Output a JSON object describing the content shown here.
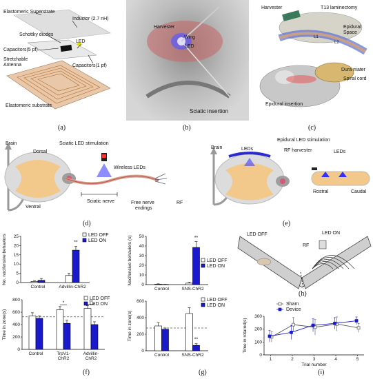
{
  "panel_a": {
    "labels": [
      "Elastomeric Superstrate",
      "Inductor (2.7 nH)",
      "Schottky diodes",
      "Capacitors(5 pf)",
      "LED",
      "Stretchable",
      "Antenna",
      "Capacitors(1 pf)",
      "Elastomeric substrate"
    ],
    "caption": "(a)"
  },
  "panel_b": {
    "labels": [
      "Harvester",
      "Wing",
      "LED",
      "Sciatic insertion"
    ],
    "caption": "(b)"
  },
  "panel_c": {
    "labels": [
      "Harvester",
      "T13 laminectomy",
      "Epidural",
      "Space",
      "Dura mater",
      "Spiral cord",
      "Epidural insertion",
      "L1",
      "L2"
    ],
    "caption": "(c)"
  },
  "panel_d": {
    "labels": [
      "Brain",
      "Dorsal",
      "Sciatic LED stimulation",
      "Wireless LEDs",
      "Ventral",
      "Sciatic nerve",
      "Free nerve",
      "endings",
      "RF"
    ],
    "caption": "(d)"
  },
  "panel_e": {
    "labels": [
      "Brain",
      "Epidural LED stimulation",
      "LEDs",
      "RF harvester",
      "LEDs",
      "Rostral",
      "Caudal"
    ],
    "caption": "(e)"
  },
  "panel_f": {
    "caption": "(f)",
    "legend": [
      "LED OFF",
      "LED ON"
    ],
    "sig": [
      "**",
      "*",
      "**"
    ]
  },
  "panel_g": {
    "caption": "(g)",
    "legend": [
      "LED OFF",
      "LED ON"
    ],
    "sig": [
      "**",
      "**"
    ]
  },
  "panel_h": {
    "labels": [
      "LED OFF",
      "LED ON",
      "RF"
    ],
    "caption": "(h)"
  },
  "panel_i": {
    "caption": "(i)",
    "legend": [
      "Sham",
      "Device"
    ]
  },
  "colors": {
    "off": "#ffffff",
    "on": "#1a1acc",
    "dashed": "#555555"
  },
  "chart_data": [
    {
      "id": "f_top",
      "type": "bar",
      "ylabel": "No. nocifensive behaviors",
      "categories": [
        "Control",
        "Advillin-ChR2"
      ],
      "ylim": [
        0,
        25
      ],
      "yticks": [
        0,
        5,
        10,
        15,
        20,
        25
      ],
      "series": [
        {
          "name": "LED OFF",
          "values": [
            0.6,
            3.8
          ],
          "err": [
            0.3,
            1.2
          ]
        },
        {
          "name": "LED ON",
          "values": [
            1.2,
            17.5
          ],
          "err": [
            1.0,
            2.0
          ]
        }
      ]
    },
    {
      "id": "f_bottom",
      "type": "bar",
      "ylabel": "Time in zone(s)",
      "categories": [
        "Control",
        "TrpV1-ChR2",
        "Advillin-ChR2"
      ],
      "category_lines": [
        [
          "Control"
        ],
        [
          "TrpV1-",
          "ChR2"
        ],
        [
          "Advillin-",
          "ChR2"
        ]
      ],
      "ylim": [
        0,
        800
      ],
      "yticks": [
        0,
        200,
        400,
        600,
        800
      ],
      "ref_line": 525,
      "series": [
        {
          "name": "LED OFF",
          "values": [
            540,
            640,
            660
          ],
          "err": [
            50,
            50,
            45
          ]
        },
        {
          "name": "LED ON",
          "values": [
            500,
            420,
            400
          ],
          "err": [
            40,
            50,
            45
          ]
        }
      ]
    },
    {
      "id": "g_top",
      "type": "bar",
      "ylabel": "Nocifensive behaviors (s)",
      "categories": [
        "Control",
        "SNS-ChR2"
      ],
      "ylim": [
        0,
        50
      ],
      "yticks": [
        0,
        10,
        20,
        30,
        40,
        50
      ],
      "series": [
        {
          "name": "LED OFF",
          "values": [
            0.5,
            1.5
          ],
          "err": [
            0.3,
            1.0
          ]
        },
        {
          "name": "LED ON",
          "values": [
            0.2,
            38.5
          ],
          "err": [
            0.1,
            6
          ]
        }
      ]
    },
    {
      "id": "g_bottom",
      "type": "bar",
      "ylabel": "Time in zone(s)",
      "categories": [
        "Control",
        "SNS-ChR2"
      ],
      "ylim": [
        0,
        600
      ],
      "yticks": [
        0,
        200,
        400,
        600
      ],
      "ref_line": 275,
      "series": [
        {
          "name": "LED OFF",
          "values": [
            300,
            450
          ],
          "err": [
            40,
            70
          ]
        },
        {
          "name": "LED ON",
          "values": [
            260,
            65
          ],
          "err": [
            15,
            20
          ]
        }
      ]
    },
    {
      "id": "i",
      "type": "line",
      "xlabel": "Trial number",
      "ylabel": "Time in rotarod(s)",
      "x": [
        1,
        2,
        3,
        4,
        5
      ],
      "xlim": [
        0.7,
        5.3
      ],
      "ylim": [
        0,
        300
      ],
      "yticks": [
        0,
        100,
        200,
        300
      ],
      "series": [
        {
          "name": "Sham",
          "values": [
            140,
            235,
            215,
            240,
            210
          ],
          "err": [
            40,
            55,
            60,
            55,
            35
          ]
        },
        {
          "name": "Device",
          "values": [
            145,
            175,
            230,
            245,
            265
          ],
          "err": [
            45,
            55,
            50,
            45,
            30
          ]
        }
      ]
    }
  ]
}
